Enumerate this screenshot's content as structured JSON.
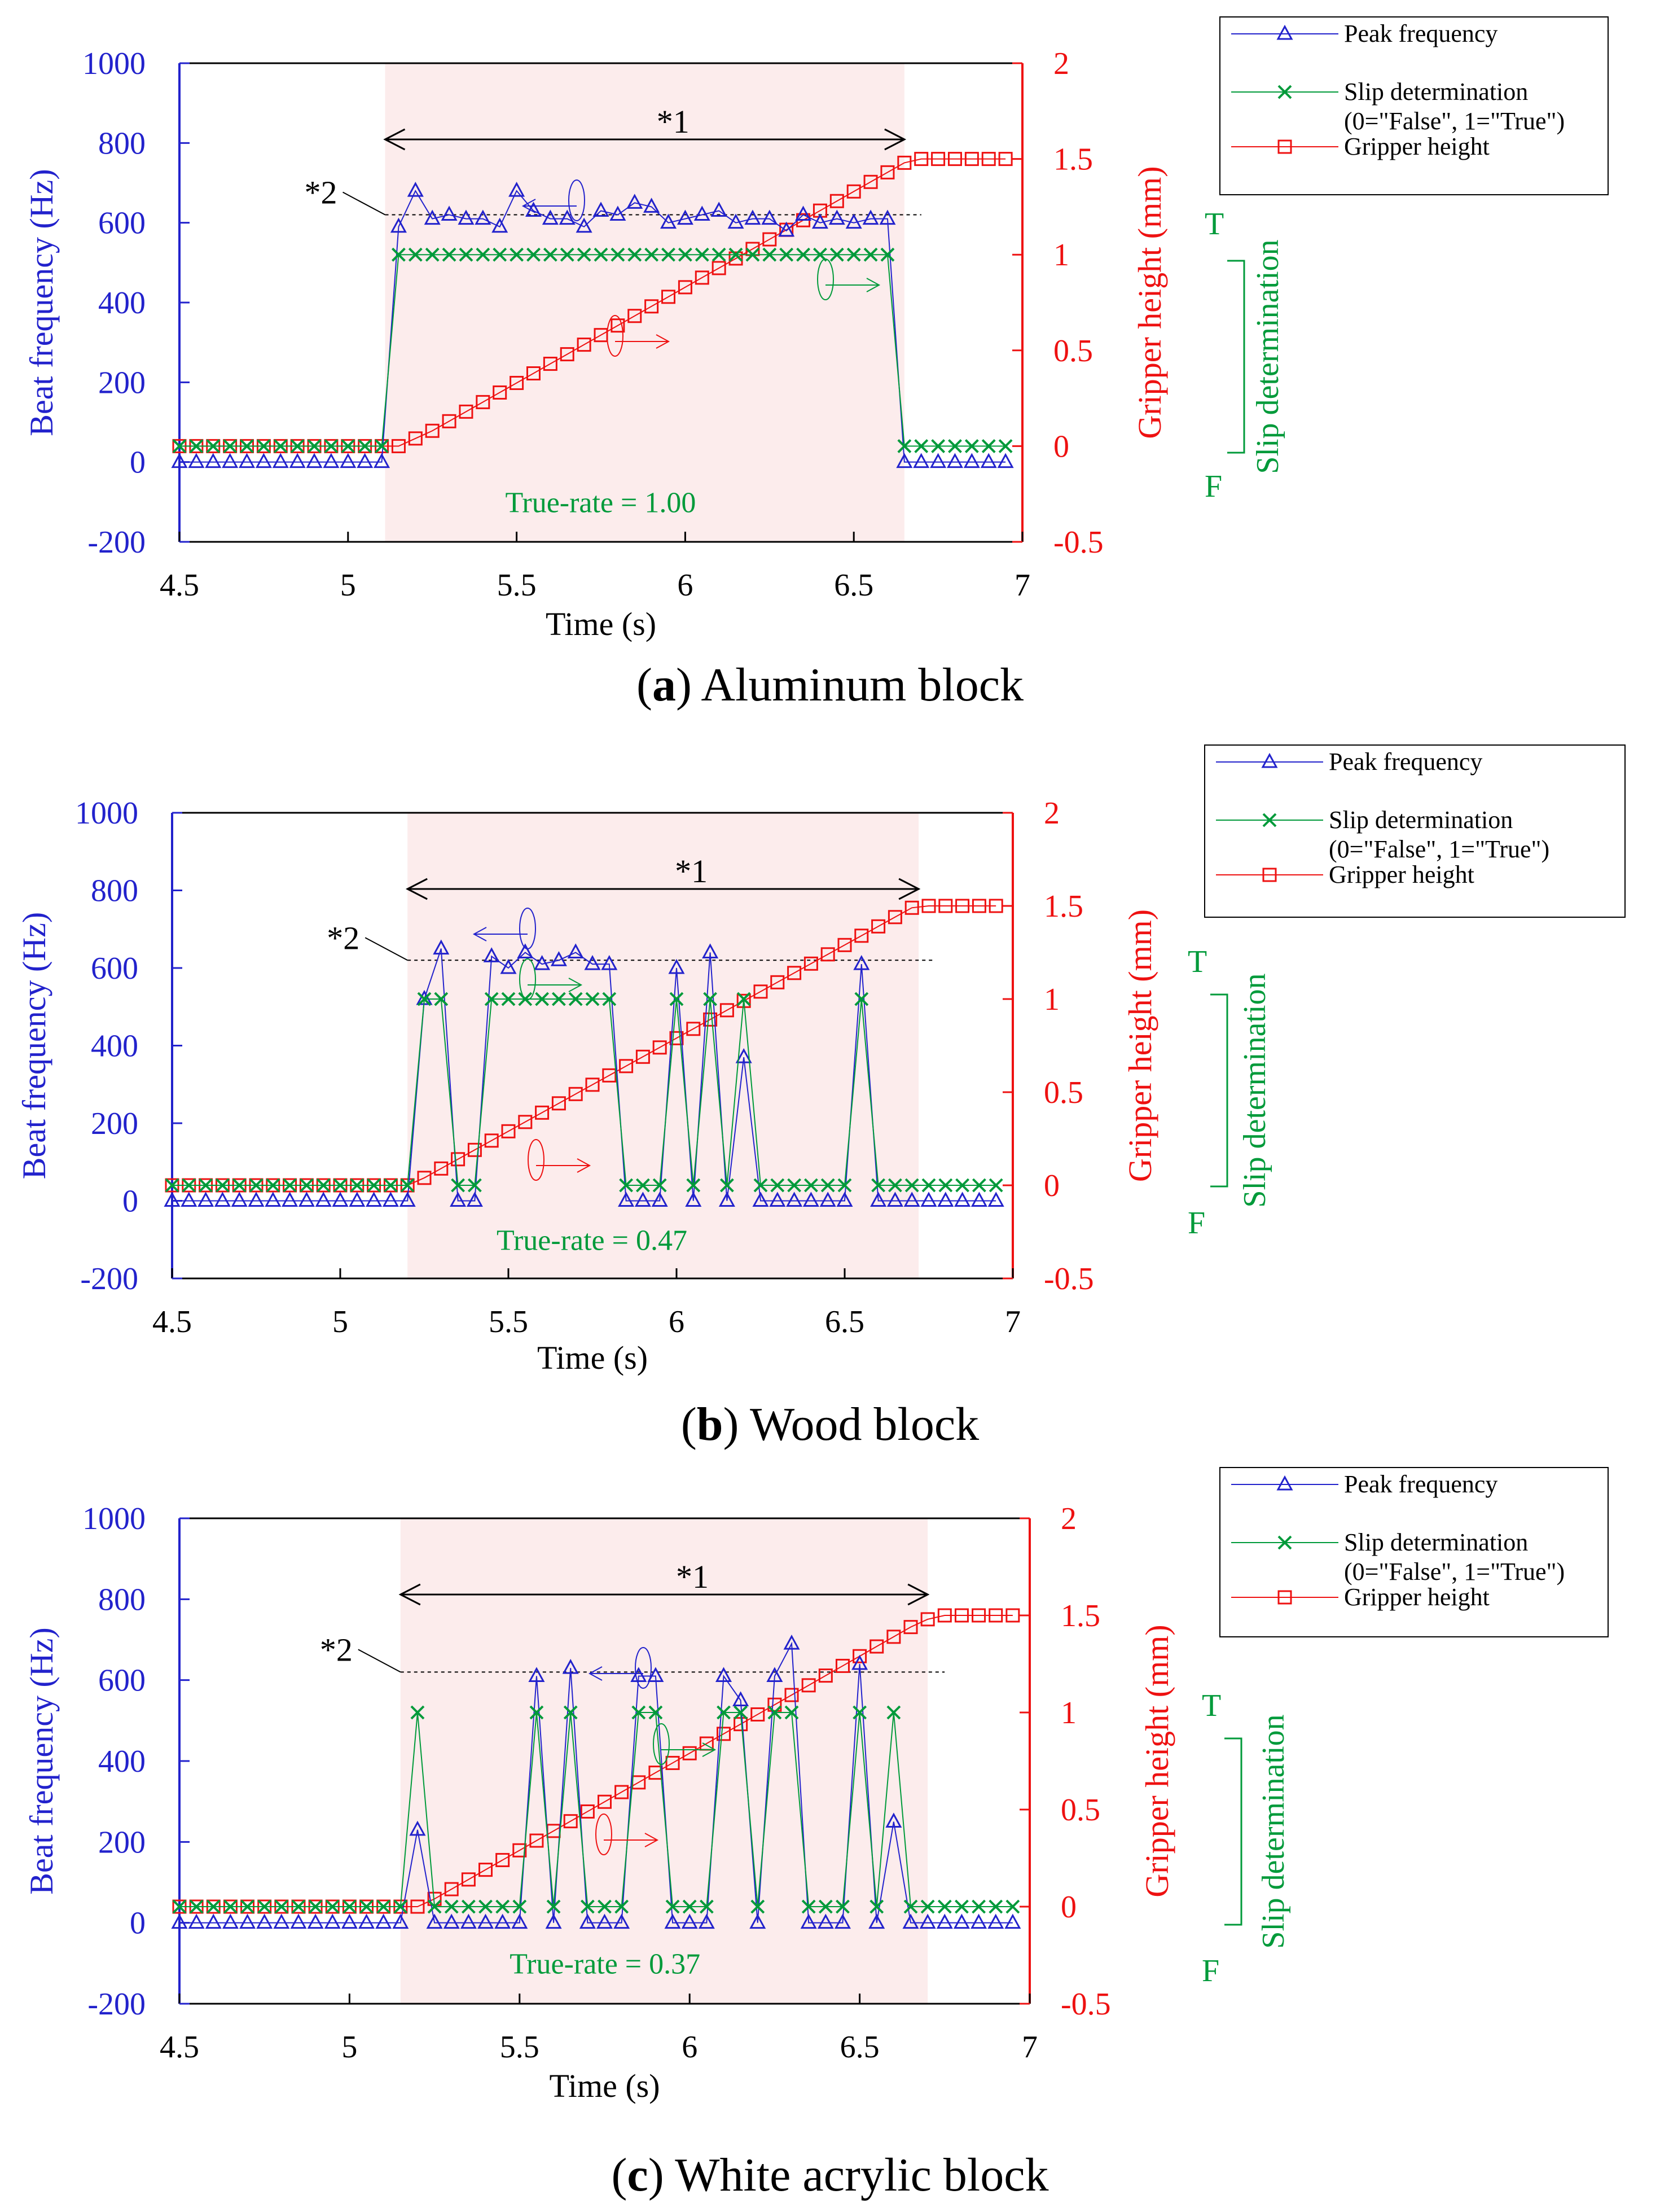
{
  "legend": {
    "peak": "Peak frequency",
    "slip": "Slip determination",
    "slip_sub": "(0=\"False\", 1=\"True\")",
    "height": "Gripper height"
  },
  "axes": {
    "xlabel": "Time (s)",
    "ylabel_left": "Beat frequency (Hz)",
    "ylabel_right": "Gripper height (mm)",
    "slip_label": "Slip determination",
    "slip_T": "T",
    "slip_F": "F",
    "x_ticks": [
      "4.5",
      "5",
      "5.5",
      "6",
      "6.5",
      "7"
    ],
    "yl_ticks": [
      "1000",
      "800",
      "600",
      "400",
      "200",
      "0",
      "-200"
    ],
    "yr_ticks": [
      "2",
      "1.5",
      "1",
      "0.5",
      "0",
      "-0.5"
    ]
  },
  "annotations": {
    "star1": "*1",
    "star2": "*2"
  },
  "colors": {
    "peak": "#2222cc",
    "slip": "#009a3a",
    "height": "#ee1111",
    "shade": "#fcecec",
    "true_rate": "#009a3a"
  },
  "chart_data": [
    {
      "type": "line",
      "label": "a",
      "title": "Aluminum block",
      "true_rate": "True-rate = 1.00",
      "xlim": [
        4.5,
        7
      ],
      "ylim_left": [
        -200,
        1000
      ],
      "ylim_right": [
        -0.5,
        2
      ],
      "shade": [
        5.11,
        6.65
      ],
      "ref_line_hz": 620,
      "peak_t": [
        4.5,
        4.55,
        4.6,
        4.65,
        4.7,
        4.75,
        4.8,
        4.85,
        4.9,
        4.95,
        5.0,
        5.05,
        5.1,
        5.15,
        5.2,
        5.25,
        5.3,
        5.35,
        5.4,
        5.45,
        5.5,
        5.55,
        5.6,
        5.65,
        5.7,
        5.75,
        5.8,
        5.85,
        5.9,
        5.95,
        6.0,
        6.05,
        6.1,
        6.15,
        6.2,
        6.25,
        6.3,
        6.35,
        6.4,
        6.45,
        6.5,
        6.55,
        6.6,
        6.65,
        6.7,
        6.75,
        6.8,
        6.85,
        6.9,
        6.95
      ],
      "peak_v": [
        0,
        0,
        0,
        0,
        0,
        0,
        0,
        0,
        0,
        0,
        0,
        0,
        0,
        590,
        680,
        610,
        620,
        610,
        610,
        590,
        680,
        630,
        610,
        610,
        590,
        630,
        620,
        650,
        640,
        600,
        610,
        620,
        630,
        600,
        610,
        610,
        580,
        620,
        600,
        610,
        600,
        610,
        610,
        0,
        0,
        0,
        0,
        0,
        0,
        0
      ],
      "slip": [
        0,
        0,
        0,
        0,
        0,
        0,
        0,
        0,
        0,
        0,
        0,
        0,
        0,
        1,
        1,
        1,
        1,
        1,
        1,
        1,
        1,
        1,
        1,
        1,
        1,
        1,
        1,
        1,
        1,
        1,
        1,
        1,
        1,
        1,
        1,
        1,
        1,
        1,
        1,
        1,
        1,
        1,
        1,
        0,
        0,
        0,
        0,
        0,
        0,
        0
      ],
      "height_t": [
        4.5,
        4.55,
        4.6,
        4.65,
        4.7,
        4.75,
        4.8,
        4.85,
        4.9,
        4.95,
        5.0,
        5.05,
        5.1,
        5.15,
        5.2,
        5.25,
        5.3,
        5.35,
        5.4,
        5.45,
        5.5,
        5.55,
        5.6,
        5.65,
        5.7,
        5.75,
        5.8,
        5.85,
        5.9,
        5.95,
        6.0,
        6.05,
        6.1,
        6.15,
        6.2,
        6.25,
        6.3,
        6.35,
        6.4,
        6.45,
        6.5,
        6.55,
        6.6,
        6.65,
        6.7,
        6.75,
        6.8,
        6.85,
        6.9,
        6.95
      ],
      "height_v": [
        0,
        0,
        0,
        0,
        0,
        0,
        0,
        0,
        0,
        0,
        0,
        0,
        0,
        0,
        0.04,
        0.08,
        0.13,
        0.18,
        0.23,
        0.28,
        0.33,
        0.38,
        0.43,
        0.48,
        0.53,
        0.58,
        0.63,
        0.68,
        0.73,
        0.78,
        0.83,
        0.88,
        0.93,
        0.98,
        1.03,
        1.08,
        1.13,
        1.18,
        1.23,
        1.28,
        1.33,
        1.38,
        1.43,
        1.48,
        1.5,
        1.5,
        1.5,
        1.5,
        1.5,
        1.5
      ]
    },
    {
      "type": "line",
      "label": "b",
      "title": "Wood block",
      "true_rate": "True-rate = 0.47",
      "xlim": [
        4.5,
        7
      ],
      "ylim_left": [
        -200,
        1000
      ],
      "ylim_right": [
        -0.5,
        2
      ],
      "shade": [
        5.2,
        6.72
      ],
      "ref_line_hz": 620,
      "peak_t": [
        4.5,
        4.55,
        4.6,
        4.65,
        4.7,
        4.75,
        4.8,
        4.85,
        4.9,
        4.95,
        5.0,
        5.05,
        5.1,
        5.15,
        5.2,
        5.25,
        5.3,
        5.35,
        5.4,
        5.45,
        5.5,
        5.55,
        5.6,
        5.65,
        5.7,
        5.75,
        5.8,
        5.85,
        5.9,
        5.95,
        6.0,
        6.05,
        6.1,
        6.15,
        6.2,
        6.25,
        6.3,
        6.35,
        6.4,
        6.45,
        6.5,
        6.55,
        6.6,
        6.65,
        6.7,
        6.75,
        6.8,
        6.85,
        6.9,
        6.95
      ],
      "peak_v": [
        0,
        0,
        0,
        0,
        0,
        0,
        0,
        0,
        0,
        0,
        0,
        0,
        0,
        0,
        0,
        520,
        650,
        0,
        0,
        630,
        600,
        640,
        610,
        620,
        640,
        610,
        610,
        0,
        0,
        0,
        600,
        0,
        640,
        0,
        370,
        0,
        0,
        0,
        0,
        0,
        0,
        610,
        0,
        0,
        0,
        0,
        0,
        0,
        0,
        0
      ],
      "slip": [
        0,
        0,
        0,
        0,
        0,
        0,
        0,
        0,
        0,
        0,
        0,
        0,
        0,
        0,
        0,
        1,
        1,
        0,
        0,
        1,
        1,
        1,
        1,
        1,
        1,
        1,
        1,
        0,
        0,
        0,
        1,
        0,
        1,
        0,
        1,
        0,
        0,
        0,
        0,
        0,
        0,
        1,
        0,
        0,
        0,
        0,
        0,
        0,
        0,
        0
      ],
      "height_t": [
        4.5,
        4.55,
        4.6,
        4.65,
        4.7,
        4.75,
        4.8,
        4.85,
        4.9,
        4.95,
        5.0,
        5.05,
        5.1,
        5.15,
        5.2,
        5.25,
        5.3,
        5.35,
        5.4,
        5.45,
        5.5,
        5.55,
        5.6,
        5.65,
        5.7,
        5.75,
        5.8,
        5.85,
        5.9,
        5.95,
        6.0,
        6.05,
        6.1,
        6.15,
        6.2,
        6.25,
        6.3,
        6.35,
        6.4,
        6.45,
        6.5,
        6.55,
        6.6,
        6.65,
        6.7,
        6.75,
        6.8,
        6.85,
        6.9,
        6.95
      ],
      "height_v": [
        0,
        0,
        0,
        0,
        0,
        0,
        0,
        0,
        0,
        0,
        0,
        0,
        0,
        0,
        0,
        0.04,
        0.09,
        0.14,
        0.19,
        0.24,
        0.29,
        0.34,
        0.39,
        0.44,
        0.49,
        0.54,
        0.59,
        0.64,
        0.69,
        0.74,
        0.79,
        0.84,
        0.89,
        0.94,
        0.99,
        1.04,
        1.09,
        1.14,
        1.19,
        1.24,
        1.29,
        1.34,
        1.39,
        1.44,
        1.49,
        1.5,
        1.5,
        1.5,
        1.5,
        1.5
      ]
    },
    {
      "type": "line",
      "label": "c",
      "title": "White acrylic block",
      "true_rate": "True-rate = 0.37",
      "xlim": [
        4.5,
        7
      ],
      "ylim_left": [
        -200,
        1000
      ],
      "ylim_right": [
        -0.5,
        2
      ],
      "shade": [
        5.15,
        6.7
      ],
      "ref_line_hz": 620,
      "peak_t": [
        4.5,
        4.55,
        4.6,
        4.65,
        4.7,
        4.75,
        4.8,
        4.85,
        4.9,
        4.95,
        5.0,
        5.05,
        5.1,
        5.15,
        5.2,
        5.25,
        5.3,
        5.35,
        5.4,
        5.45,
        5.5,
        5.55,
        5.6,
        5.65,
        5.7,
        5.75,
        5.8,
        5.85,
        5.9,
        5.95,
        6.0,
        6.05,
        6.1,
        6.15,
        6.2,
        6.25,
        6.3,
        6.35,
        6.4,
        6.45,
        6.5,
        6.55,
        6.6,
        6.65,
        6.7,
        6.75,
        6.8,
        6.85,
        6.9,
        6.95
      ],
      "peak_v": [
        0,
        0,
        0,
        0,
        0,
        0,
        0,
        0,
        0,
        0,
        0,
        0,
        0,
        0,
        230,
        0,
        0,
        0,
        0,
        0,
        0,
        610,
        0,
        630,
        0,
        0,
        0,
        610,
        610,
        0,
        0,
        0,
        610,
        550,
        0,
        610,
        690,
        0,
        0,
        0,
        640,
        0,
        250,
        0,
        0,
        0,
        0,
        0,
        0,
        0
      ],
      "slip": [
        0,
        0,
        0,
        0,
        0,
        0,
        0,
        0,
        0,
        0,
        0,
        0,
        0,
        0,
        1,
        0,
        0,
        0,
        0,
        0,
        0,
        1,
        0,
        1,
        0,
        0,
        0,
        1,
        1,
        0,
        0,
        0,
        1,
        1,
        0,
        1,
        1,
        0,
        0,
        0,
        1,
        0,
        1,
        0,
        0,
        0,
        0,
        0,
        0,
        0
      ],
      "height_t": [
        4.5,
        4.55,
        4.6,
        4.65,
        4.7,
        4.75,
        4.8,
        4.85,
        4.9,
        4.95,
        5.0,
        5.05,
        5.1,
        5.15,
        5.2,
        5.25,
        5.3,
        5.35,
        5.4,
        5.45,
        5.5,
        5.55,
        5.6,
        5.65,
        5.7,
        5.75,
        5.8,
        5.85,
        5.9,
        5.95,
        6.0,
        6.05,
        6.1,
        6.15,
        6.2,
        6.25,
        6.3,
        6.35,
        6.4,
        6.45,
        6.5,
        6.55,
        6.6,
        6.65,
        6.7,
        6.75,
        6.8,
        6.85,
        6.9,
        6.95
      ],
      "height_v": [
        0,
        0,
        0,
        0,
        0,
        0,
        0,
        0,
        0,
        0,
        0,
        0,
        0,
        0,
        0,
        0.04,
        0.09,
        0.14,
        0.19,
        0.24,
        0.29,
        0.34,
        0.39,
        0.44,
        0.49,
        0.54,
        0.59,
        0.64,
        0.69,
        0.74,
        0.79,
        0.84,
        0.89,
        0.94,
        0.99,
        1.04,
        1.09,
        1.14,
        1.19,
        1.24,
        1.29,
        1.34,
        1.39,
        1.44,
        1.48,
        1.5,
        1.5,
        1.5,
        1.5,
        1.5
      ]
    }
  ]
}
